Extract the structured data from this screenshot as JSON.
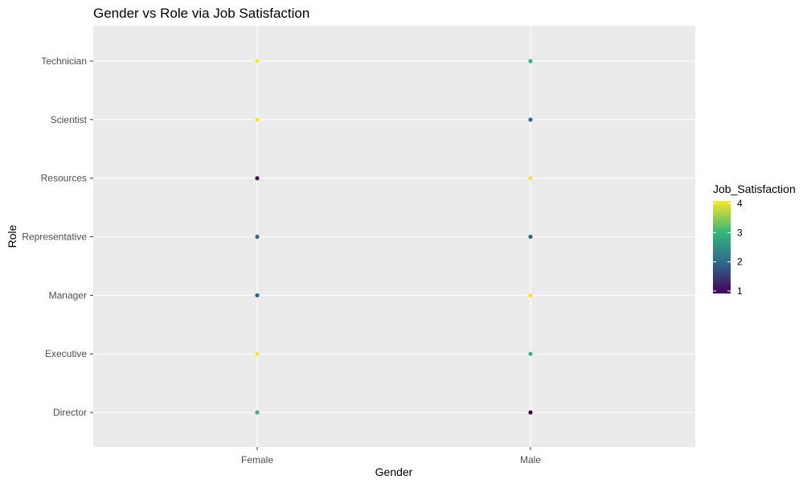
{
  "chart_data": {
    "type": "scatter",
    "title": "Gender vs Role via Job Satisfaction",
    "xlabel": "Gender",
    "ylabel": "Role",
    "x_categories": [
      "Female",
      "Male"
    ],
    "y_categories": [
      "Director",
      "Executive",
      "Manager",
      "Representative",
      "Resources",
      "Scientist",
      "Technician"
    ],
    "color_variable": "Job_Satisfaction",
    "color_scale": {
      "name": "viridis",
      "min": 1,
      "max": 4,
      "ticks": [
        1,
        2,
        3,
        4
      ],
      "stops": [
        "#440154",
        "#31688e",
        "#35b779",
        "#fde725"
      ]
    },
    "points": [
      {
        "x": "Female",
        "y": "Technician",
        "value": 4
      },
      {
        "x": "Male",
        "y": "Technician",
        "value": 3
      },
      {
        "x": "Female",
        "y": "Scientist",
        "value": 4
      },
      {
        "x": "Male",
        "y": "Scientist",
        "value": 2
      },
      {
        "x": "Female",
        "y": "Resources",
        "value": 1
      },
      {
        "x": "Male",
        "y": "Resources",
        "value": 4
      },
      {
        "x": "Female",
        "y": "Representative",
        "value": 2
      },
      {
        "x": "Male",
        "y": "Representative",
        "value": 2
      },
      {
        "x": "Female",
        "y": "Manager",
        "value": 2
      },
      {
        "x": "Male",
        "y": "Manager",
        "value": 4
      },
      {
        "x": "Female",
        "y": "Executive",
        "value": 4
      },
      {
        "x": "Male",
        "y": "Executive",
        "value": 3
      },
      {
        "x": "Female",
        "y": "Director",
        "value": 3
      },
      {
        "x": "Male",
        "y": "Director",
        "value": 1
      }
    ],
    "grid": true,
    "legend_position": "right"
  }
}
